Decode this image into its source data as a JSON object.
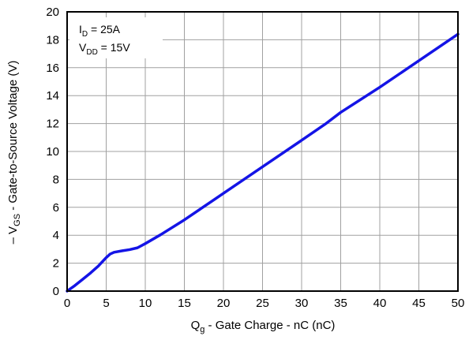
{
  "chart_data": {
    "type": "line",
    "xlabel_main": "Q",
    "xlabel_sub": "g",
    "xlabel_rest": " - Gate Charge - nC (nC)",
    "ylabel_prefix": "– V",
    "ylabel_sub": "GS",
    "ylabel_rest": " - Gate-to-Source Voltage (V)",
    "xlim": [
      0,
      50
    ],
    "ylim": [
      0,
      20
    ],
    "x_ticks": [
      0,
      5,
      10,
      15,
      20,
      25,
      30,
      35,
      40,
      45,
      50
    ],
    "y_ticks": [
      0,
      2,
      4,
      6,
      8,
      10,
      12,
      14,
      16,
      18,
      20
    ],
    "grid": true,
    "annotation": {
      "line1_main": "I",
      "line1_sub": "D",
      "line1_rest": " = 25A",
      "line2_main": "V",
      "line2_sub": "DD",
      "line2_rest": " = 15V"
    },
    "series": [
      {
        "color": "#1414e6",
        "points": [
          [
            0,
            0
          ],
          [
            1,
            0.4
          ],
          [
            2,
            0.85
          ],
          [
            3,
            1.3
          ],
          [
            4,
            1.8
          ],
          [
            5,
            2.4
          ],
          [
            5.5,
            2.65
          ],
          [
            6,
            2.78
          ],
          [
            7,
            2.88
          ],
          [
            8,
            2.97
          ],
          [
            9,
            3.1
          ],
          [
            10,
            3.4
          ],
          [
            12,
            4.05
          ],
          [
            15,
            5.1
          ],
          [
            20,
            7.0
          ],
          [
            25,
            8.9
          ],
          [
            30,
            10.8
          ],
          [
            33,
            11.95
          ],
          [
            35,
            12.8
          ],
          [
            40,
            14.6
          ],
          [
            45,
            16.5
          ],
          [
            50,
            18.4
          ]
        ]
      }
    ]
  }
}
